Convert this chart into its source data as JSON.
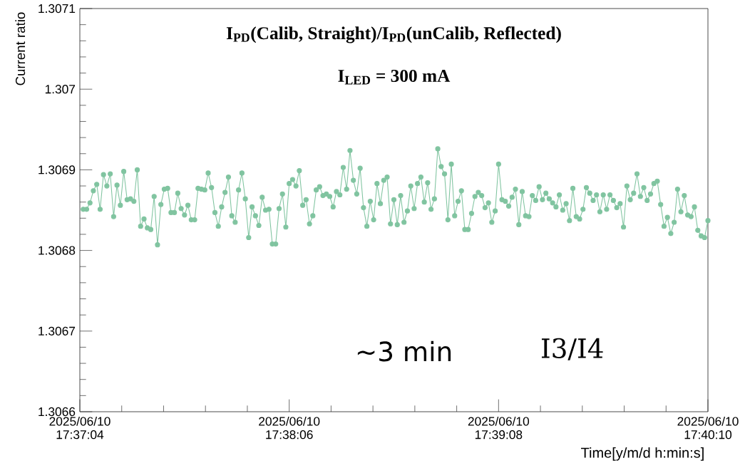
{
  "chart_data": {
    "type": "line",
    "title": "I$_{PD}$(Calib, Straight)/I$_{PD}$(unCalib, Reflected)",
    "subtitle": "I$_{LED}$ = 300 mA",
    "xlabel": "Time[y/m/d h:min:s]",
    "ylabel": "Current ratio",
    "annotations": [
      "~3 min",
      "I3/I4"
    ],
    "marker": "circle",
    "line_style": "solid",
    "xlim": [
      "2025-06-10T17:37:04",
      "2025-06-10T17:40:10"
    ],
    "xticks": [
      {
        "value": "2025-06-10T17:37:04",
        "label": "2025/06/10 17:37:04"
      },
      {
        "value": "2025-06-10T17:37:16.4",
        "label": null
      },
      {
        "value": "2025-06-10T17:37:28.8",
        "label": null
      },
      {
        "value": "2025-06-10T17:37:41.2",
        "label": null
      },
      {
        "value": "2025-06-10T17:37:53.6",
        "label": null
      },
      {
        "value": "2025-06-10T17:38:06",
        "label": "2025/06/10 17:38:06"
      },
      {
        "value": "2025-06-10T17:38:18.4",
        "label": null
      },
      {
        "value": "2025-06-10T17:38:30.8",
        "label": null
      },
      {
        "value": "2025-06-10T17:38:43.2",
        "label": null
      },
      {
        "value": "2025-06-10T17:38:55.6",
        "label": null
      },
      {
        "value": "2025-06-10T17:39:08",
        "label": "2025/06/10 17:39:08"
      },
      {
        "value": "2025-06-10T17:39:20.4",
        "label": null
      },
      {
        "value": "2025-06-10T17:39:32.8",
        "label": null
      },
      {
        "value": "2025-06-10T17:39:45.2",
        "label": null
      },
      {
        "value": "2025-06-10T17:39:57.6",
        "label": null
      },
      {
        "value": "2025-06-10T17:40:10",
        "label": "2025/06/10 17:40:10"
      }
    ],
    "ylim": [
      1.3066,
      1.3071
    ],
    "yticks": [
      1.3066,
      {
        "value": 1.30662,
        "label": null
      },
      {
        "value": 1.30664,
        "label": null
      },
      {
        "value": 1.30666,
        "label": null
      },
      {
        "value": 1.30668,
        "label": null
      },
      1.3067,
      {
        "value": 1.30672,
        "label": null
      },
      {
        "value": 1.30674,
        "label": null
      },
      {
        "value": 1.30676,
        "label": null
      },
      {
        "value": 1.30678,
        "label": null
      },
      1.3068,
      {
        "value": 1.30682,
        "label": null
      },
      {
        "value": 1.30684,
        "label": null
      },
      {
        "value": 1.30686,
        "label": null
      },
      {
        "value": 1.30688,
        "label": null
      },
      1.3069,
      {
        "value": 1.30692,
        "label": null
      },
      {
        "value": 1.30694,
        "label": null
      },
      {
        "value": 1.30696,
        "label": null
      },
      {
        "value": 1.30698,
        "label": null
      },
      1.307,
      {
        "value": 1.30702,
        "label": null
      },
      {
        "value": 1.30704,
        "label": null
      },
      {
        "value": 1.30706,
        "label": null
      },
      {
        "value": 1.30708,
        "label": null
      },
      1.3071
    ],
    "x": [
      "2025-06-10T17:37:05",
      "2025-06-10T17:37:06",
      "2025-06-10T17:37:07",
      "2025-06-10T17:37:08",
      "2025-06-10T17:37:09",
      "2025-06-10T17:37:10",
      "2025-06-10T17:37:11",
      "2025-06-10T17:37:12",
      "2025-06-10T17:37:13",
      "2025-06-10T17:37:14",
      "2025-06-10T17:37:15",
      "2025-06-10T17:37:16",
      "2025-06-10T17:37:17",
      "2025-06-10T17:37:18",
      "2025-06-10T17:37:19",
      "2025-06-10T17:37:20",
      "2025-06-10T17:37:21",
      "2025-06-10T17:37:22",
      "2025-06-10T17:37:23",
      "2025-06-10T17:37:24",
      "2025-06-10T17:37:25",
      "2025-06-10T17:37:26",
      "2025-06-10T17:37:27",
      "2025-06-10T17:37:28",
      "2025-06-10T17:37:29",
      "2025-06-10T17:37:30",
      "2025-06-10T17:37:31",
      "2025-06-10T17:37:32",
      "2025-06-10T17:37:33",
      "2025-06-10T17:37:34",
      "2025-06-10T17:37:35",
      "2025-06-10T17:37:36",
      "2025-06-10T17:37:37",
      "2025-06-10T17:37:38",
      "2025-06-10T17:37:39",
      "2025-06-10T17:37:40",
      "2025-06-10T17:37:41",
      "2025-06-10T17:37:42",
      "2025-06-10T17:37:43",
      "2025-06-10T17:37:44",
      "2025-06-10T17:37:45",
      "2025-06-10T17:37:46",
      "2025-06-10T17:37:47",
      "2025-06-10T17:37:48",
      "2025-06-10T17:37:49",
      "2025-06-10T17:37:50",
      "2025-06-10T17:37:51",
      "2025-06-10T17:37:52",
      "2025-06-10T17:37:53",
      "2025-06-10T17:37:54",
      "2025-06-10T17:37:55",
      "2025-06-10T17:37:56",
      "2025-06-10T17:37:57",
      "2025-06-10T17:37:58",
      "2025-06-10T17:37:59",
      "2025-06-10T17:38:00",
      "2025-06-10T17:38:01",
      "2025-06-10T17:38:02",
      "2025-06-10T17:38:03",
      "2025-06-10T17:38:04",
      "2025-06-10T17:38:05",
      "2025-06-10T17:38:06",
      "2025-06-10T17:38:07",
      "2025-06-10T17:38:08",
      "2025-06-10T17:38:09",
      "2025-06-10T17:38:10",
      "2025-06-10T17:38:11",
      "2025-06-10T17:38:12",
      "2025-06-10T17:38:13",
      "2025-06-10T17:38:14",
      "2025-06-10T17:38:15",
      "2025-06-10T17:38:16",
      "2025-06-10T17:38:17",
      "2025-06-10T17:38:18",
      "2025-06-10T17:38:19",
      "2025-06-10T17:38:20",
      "2025-06-10T17:38:21",
      "2025-06-10T17:38:22",
      "2025-06-10T17:38:23",
      "2025-06-10T17:38:24",
      "2025-06-10T17:38:25",
      "2025-06-10T17:38:26",
      "2025-06-10T17:38:27",
      "2025-06-10T17:38:28",
      "2025-06-10T17:38:29",
      "2025-06-10T17:38:30",
      "2025-06-10T17:38:31",
      "2025-06-10T17:38:32",
      "2025-06-10T17:38:33",
      "2025-06-10T17:38:34",
      "2025-06-10T17:38:35",
      "2025-06-10T17:38:36",
      "2025-06-10T17:38:37",
      "2025-06-10T17:38:38",
      "2025-06-10T17:38:39",
      "2025-06-10T17:38:40",
      "2025-06-10T17:38:41",
      "2025-06-10T17:38:42",
      "2025-06-10T17:38:43",
      "2025-06-10T17:38:44",
      "2025-06-10T17:38:45",
      "2025-06-10T17:38:46",
      "2025-06-10T17:38:47",
      "2025-06-10T17:38:48",
      "2025-06-10T17:38:49",
      "2025-06-10T17:38:50",
      "2025-06-10T17:38:51",
      "2025-06-10T17:38:52",
      "2025-06-10T17:38:53",
      "2025-06-10T17:38:54",
      "2025-06-10T17:38:55",
      "2025-06-10T17:38:56",
      "2025-06-10T17:38:57",
      "2025-06-10T17:38:58",
      "2025-06-10T17:38:59",
      "2025-06-10T17:39:00",
      "2025-06-10T17:39:01",
      "2025-06-10T17:39:02",
      "2025-06-10T17:39:03",
      "2025-06-10T17:39:04",
      "2025-06-10T17:39:05",
      "2025-06-10T17:39:06",
      "2025-06-10T17:39:07",
      "2025-06-10T17:39:08",
      "2025-06-10T17:39:09",
      "2025-06-10T17:39:10",
      "2025-06-10T17:39:11",
      "2025-06-10T17:39:12",
      "2025-06-10T17:39:13",
      "2025-06-10T17:39:14",
      "2025-06-10T17:39:15",
      "2025-06-10T17:39:16",
      "2025-06-10T17:39:17",
      "2025-06-10T17:39:18",
      "2025-06-10T17:39:19",
      "2025-06-10T17:39:20",
      "2025-06-10T17:39:21",
      "2025-06-10T17:39:22",
      "2025-06-10T17:39:23",
      "2025-06-10T17:39:24",
      "2025-06-10T17:39:25",
      "2025-06-10T17:39:26",
      "2025-06-10T17:39:27",
      "2025-06-10T17:39:28",
      "2025-06-10T17:39:29",
      "2025-06-10T17:39:30",
      "2025-06-10T17:39:31",
      "2025-06-10T17:39:32",
      "2025-06-10T17:39:33",
      "2025-06-10T17:39:34",
      "2025-06-10T17:39:35",
      "2025-06-10T17:39:36",
      "2025-06-10T17:39:37",
      "2025-06-10T17:39:38",
      "2025-06-10T17:39:39",
      "2025-06-10T17:39:40",
      "2025-06-10T17:39:41",
      "2025-06-10T17:39:42",
      "2025-06-10T17:39:43",
      "2025-06-10T17:39:44",
      "2025-06-10T17:39:45",
      "2025-06-10T17:39:46",
      "2025-06-10T17:39:47",
      "2025-06-10T17:39:48",
      "2025-06-10T17:39:49",
      "2025-06-10T17:39:50",
      "2025-06-10T17:39:51",
      "2025-06-10T17:39:52",
      "2025-06-10T17:39:53",
      "2025-06-10T17:39:54",
      "2025-06-10T17:39:55",
      "2025-06-10T17:39:56",
      "2025-06-10T17:39:57",
      "2025-06-10T17:39:58",
      "2025-06-10T17:39:59",
      "2025-06-10T17:40:00",
      "2025-06-10T17:40:01",
      "2025-06-10T17:40:02",
      "2025-06-10T17:40:03",
      "2025-06-10T17:40:04",
      "2025-06-10T17:40:05",
      "2025-06-10T17:40:06",
      "2025-06-10T17:40:07",
      "2025-06-10T17:40:08",
      "2025-06-10T17:40:09",
      "2025-06-10T17:40:10"
    ],
    "series": [
      {
        "color": "#80c4a0",
        "values": [
          1.306851,
          1.306851,
          1.306859,
          1.306874,
          1.306882,
          1.306851,
          1.306894,
          1.30688,
          1.306895,
          1.306842,
          1.306881,
          1.306856,
          1.306898,
          1.306863,
          1.306864,
          1.306861,
          1.3069,
          1.30683,
          1.306839,
          1.306828,
          1.306826,
          1.306867,
          1.306807,
          1.306857,
          1.306876,
          1.306877,
          1.306847,
          1.306847,
          1.306871,
          1.306852,
          1.306844,
          1.306856,
          1.306838,
          1.306838,
          1.306877,
          1.306876,
          1.306875,
          1.306896,
          1.306878,
          1.306847,
          1.30683,
          1.306854,
          1.306872,
          1.306891,
          1.306843,
          1.306835,
          1.306875,
          1.306896,
          1.306864,
          1.306816,
          1.306854,
          1.306843,
          1.306831,
          1.306866,
          1.30685,
          1.306851,
          1.306808,
          1.306808,
          1.306852,
          1.30687,
          1.306829,
          1.306883,
          1.306888,
          1.30688,
          1.306899,
          1.306856,
          1.306863,
          1.306833,
          1.306843,
          1.306875,
          1.306879,
          1.306868,
          1.30687,
          1.306867,
          1.306854,
          1.306873,
          1.306869,
          1.306903,
          1.306876,
          1.306924,
          1.306887,
          1.30687,
          1.306902,
          1.306853,
          1.30683,
          1.306861,
          1.306838,
          1.306883,
          1.306858,
          1.306887,
          1.306891,
          1.306833,
          1.306863,
          1.306832,
          1.306868,
          1.306835,
          1.306849,
          1.30688,
          1.306852,
          1.306883,
          1.306891,
          1.30686,
          1.306884,
          1.306851,
          1.306864,
          1.306926,
          1.306904,
          1.306895,
          1.306838,
          1.306907,
          1.306843,
          1.306861,
          1.306874,
          1.306826,
          1.306826,
          1.306846,
          1.306867,
          1.306872,
          1.306868,
          1.306853,
          1.306859,
          1.306835,
          1.306849,
          1.306907,
          1.306863,
          1.306861,
          1.306855,
          1.306866,
          1.306876,
          1.306832,
          1.306873,
          1.306843,
          1.306842,
          1.306868,
          1.306862,
          1.306879,
          1.306863,
          1.306871,
          1.306864,
          1.306859,
          1.306854,
          1.306869,
          1.30685,
          1.306858,
          1.306837,
          1.306877,
          1.306842,
          1.306839,
          1.306851,
          1.306878,
          1.306871,
          1.306862,
          1.306869,
          1.306848,
          1.306869,
          1.306851,
          1.306869,
          1.306862,
          1.306853,
          1.306858,
          1.306829,
          1.30688,
          1.306863,
          1.306871,
          1.306895,
          1.306867,
          1.306878,
          1.306862,
          1.30687,
          1.306883,
          1.306886,
          1.306857,
          1.30683,
          1.306841,
          1.306821,
          1.306835,
          1.306876,
          1.306848,
          1.306868,
          1.306844,
          1.306842,
          1.306854,
          1.306825,
          1.306818,
          1.306816,
          1.306837
        ]
      }
    ]
  }
}
